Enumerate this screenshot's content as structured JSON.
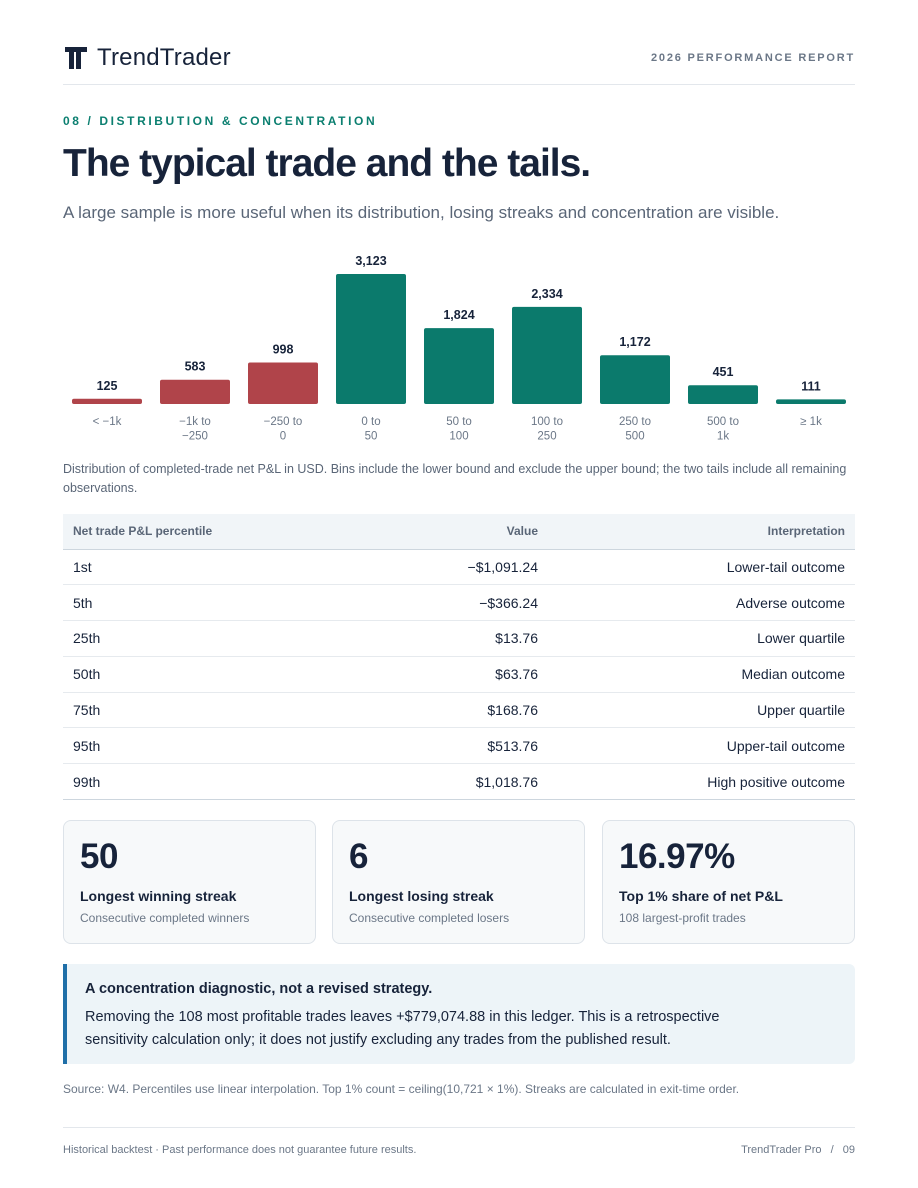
{
  "header": {
    "brand": "TrendTrader",
    "logo_icon": "trendtrader-logo-icon",
    "report_label": "2026 PERFORMANCE REPORT"
  },
  "section": {
    "eyebrow": "08 / DISTRIBUTION & CONCENTRATION",
    "title": "The typical trade and the tails.",
    "subtitle": "A large sample is more useful when its distribution, losing streaks and concentration are visible."
  },
  "chart_data": {
    "type": "bar",
    "categories": [
      [
        "< −1k"
      ],
      [
        "−1k to",
        "−250"
      ],
      [
        "−250 to",
        "0"
      ],
      [
        "0 to",
        "50"
      ],
      [
        "50 to",
        "100"
      ],
      [
        "100 to",
        "250"
      ],
      [
        "250 to",
        "500"
      ],
      [
        "500 to",
        "1k"
      ],
      [
        "≥ 1k"
      ]
    ],
    "values": [
      125,
      583,
      998,
      3123,
      1824,
      2334,
      1172,
      451,
      111
    ],
    "value_labels": [
      "125",
      "583",
      "998",
      "3,123",
      "1,824",
      "2,334",
      "1,172",
      "451",
      "111"
    ],
    "negative_color": "#b0444a",
    "positive_color": "#0b7a6c",
    "negative_count": 3,
    "ylim": [
      0,
      3123
    ],
    "grid": false,
    "legend": "none"
  },
  "caption": "Distribution of completed-trade net P&L in USD. Bins include the lower bound and exclude the upper bound; the two tails include all remaining observations.",
  "percentile_table": {
    "headers": [
      "Net trade P&L percentile",
      "Value",
      "Interpretation"
    ],
    "rows": [
      [
        "1st",
        "−$1,091.24",
        "Lower‑tail outcome"
      ],
      [
        "5th",
        "−$366.24",
        "Adverse outcome"
      ],
      [
        "25th",
        "$13.76",
        "Lower quartile"
      ],
      [
        "50th",
        "$63.76",
        "Median outcome"
      ],
      [
        "75th",
        "$168.76",
        "Upper quartile"
      ],
      [
        "95th",
        "$513.76",
        "Upper‑tail outcome"
      ],
      [
        "99th",
        "$1,018.76",
        "High positive outcome"
      ]
    ]
  },
  "cards": [
    {
      "value": "50",
      "label": "Longest winning streak",
      "sub": "Consecutive completed winners"
    },
    {
      "value": "6",
      "label": "Longest losing streak",
      "sub": "Consecutive completed losers"
    },
    {
      "value": "16.97%",
      "label": "Top 1% share of net P&L",
      "sub": "108 largest-profit trades"
    }
  ],
  "callout": {
    "heading": "A concentration diagnostic, not a revised strategy.",
    "body": "Removing the 108 most profitable trades leaves +$779,074.88 in this ledger. This is a retrospective sensitivity calculation only; it does not justify excluding any trades from the published result."
  },
  "source": "Source: W4. Percentiles use linear interpolation. Top 1% count = ceiling(10,721 × 1%). Streaks are calculated in exit-time order.",
  "footer": {
    "disclaimer": "Historical backtest · Past performance does not guarantee future results.",
    "product": "TrendTrader Pro",
    "separator": "/",
    "page": "09"
  }
}
